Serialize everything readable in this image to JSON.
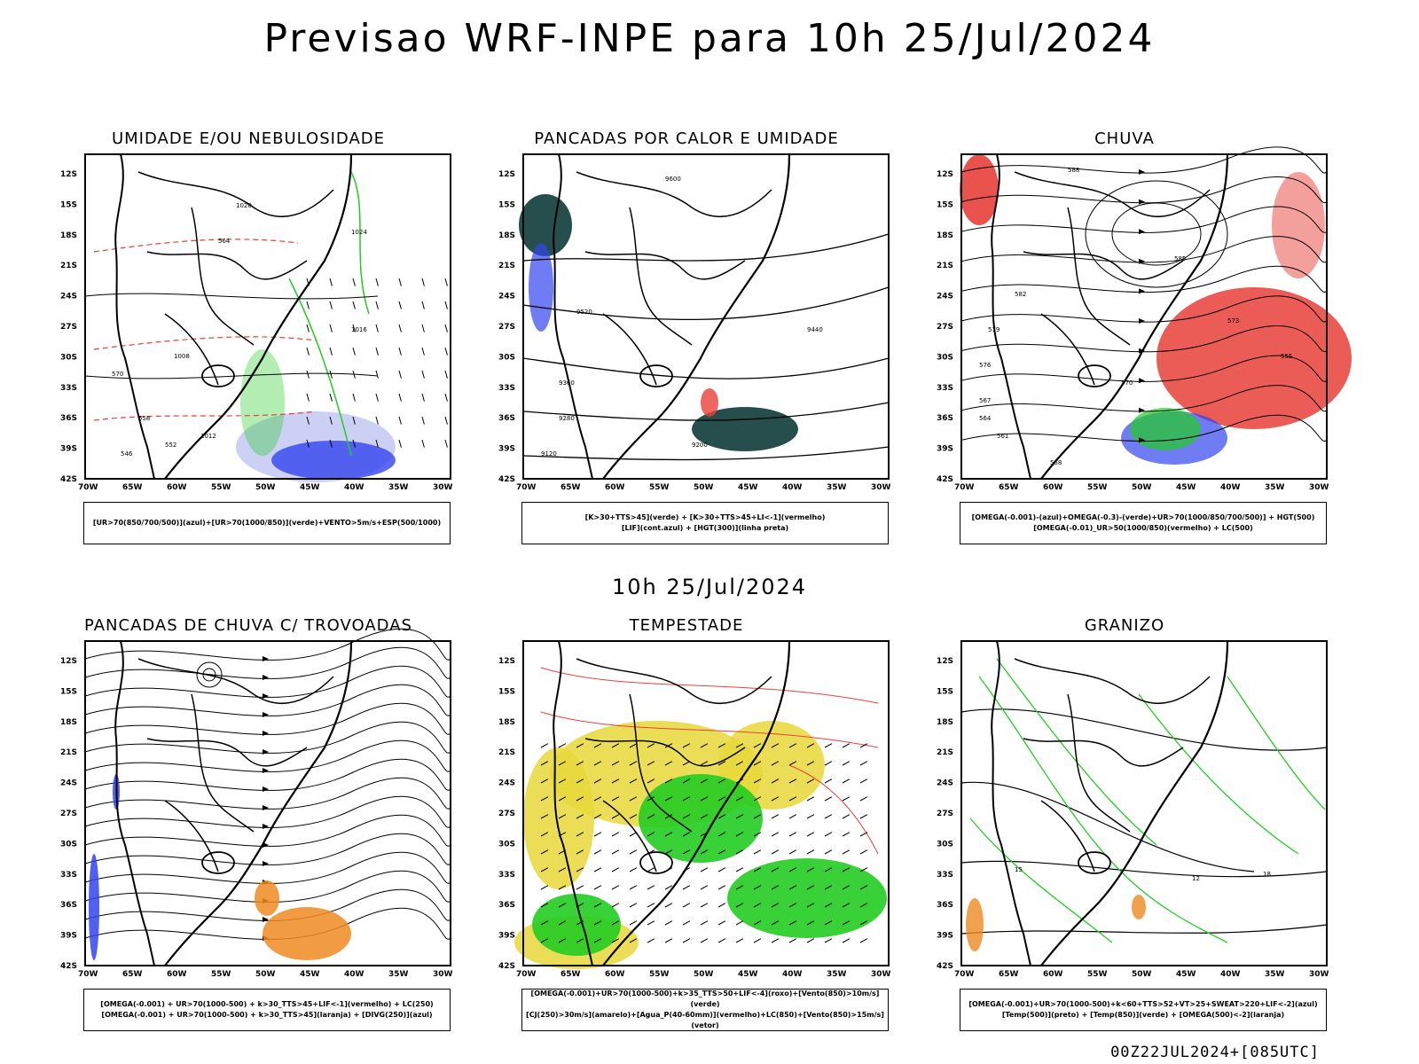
{
  "header": {
    "title": "Previsao WRF-INPE  para 10h 25/Jul/2024"
  },
  "middle": {
    "subtitle": "10h 25/Jul/2024"
  },
  "footer": {
    "run_label": "00Z22JUL2024+[085UTC]"
  },
  "axes": {
    "lat_labels": [
      "12S",
      "15S",
      "18S",
      "21S",
      "24S",
      "27S",
      "30S",
      "33S",
      "36S",
      "39S",
      "42S"
    ],
    "lon_labels": [
      "70W",
      "65W",
      "60W",
      "55W",
      "50W",
      "45W",
      "40W",
      "35W",
      "30W"
    ]
  },
  "colors": {
    "red": "#e8403a",
    "green": "#22cc22",
    "blue": "#3344ee",
    "dark_teal": "#0e3b38",
    "yellow": "#e8d838",
    "orange": "#ee8a22",
    "light_blue": "#aab0ee"
  },
  "panels": [
    {
      "id": "umidade",
      "title": "UMIDADE E/OU NEBULOSIDADE",
      "legend": [
        "[UR>70(850/700/500)](azul)+[UR>70(1000/850)](verde)+VENTO>5m/s+ESP(500/1000)"
      ],
      "contour_labels": [
        "1020",
        "1024",
        "1016",
        "1012",
        "1008",
        "570",
        "564",
        "558",
        "552",
        "546"
      ]
    },
    {
      "id": "pancadas_calor",
      "title": "PANCADAS POR CALOR E UMIDADE",
      "legend": [
        "[K>30+TTS>45](verde) + [K>30+TTS>45+LI<-1](vermelho)",
        "[LIF](cont.azul) + [HGT(300)](linha preta)"
      ],
      "contour_labels": [
        "9600",
        "9520",
        "9440",
        "9360",
        "9280",
        "9200",
        "9120"
      ]
    },
    {
      "id": "chuva",
      "title": "CHUVA",
      "legend": [
        "[OMEGA(-0.001)-(azul)+OMEGA(-0.3)-(verde)+UR>70(1000/850/700/500)] + HGT(500)",
        "[OMEGA(-0.01)_UR>50(1000/850)(vermelho) + LC(500)"
      ],
      "contour_labels": [
        "588",
        "585",
        "582",
        "579",
        "576",
        "573",
        "570",
        "567",
        "564",
        "561",
        "558",
        "555"
      ]
    },
    {
      "id": "trovoadas",
      "title": "PANCADAS DE CHUVA C/ TROVOADAS",
      "legend": [
        "[OMEGA(-0.001) + UR>70(1000-500) + k>30_TTS>45+LIF<-1](vermelho) + LC(250)",
        "[OMEGA(-0.001) + UR>70(1000-500) + k>30_TTS>45](laranja) + [DIVG(250)](azul)"
      ],
      "contour_labels": []
    },
    {
      "id": "tempestade",
      "title": "TEMPESTADE",
      "legend": [
        "[OMEGA(-0.001)+UR>70(1000-500)+k>35_TTS>50+LIF<-4](roxo)+[Vento(850)>10m/s](verde)",
        "[CJ(250)>30m/s](amarelo)+[Agua_P(40-60mm)](vermelho)+LC(850)+[Vento(850)>15m/s](vetor)"
      ],
      "contour_labels": []
    },
    {
      "id": "granizo",
      "title": "GRANIZO",
      "legend": [
        "[OMEGA(-0.001)+UR>70(1000-500)+k<60+TTS>52+VT>25+SWEAT>220+LIF<-2](azul)",
        "[Temp(500)](preto) + [Temp(850)](verde) + [OMEGA(500)<-2](laranja)"
      ],
      "contour_labels": [
        "12",
        "15",
        "18"
      ]
    }
  ]
}
